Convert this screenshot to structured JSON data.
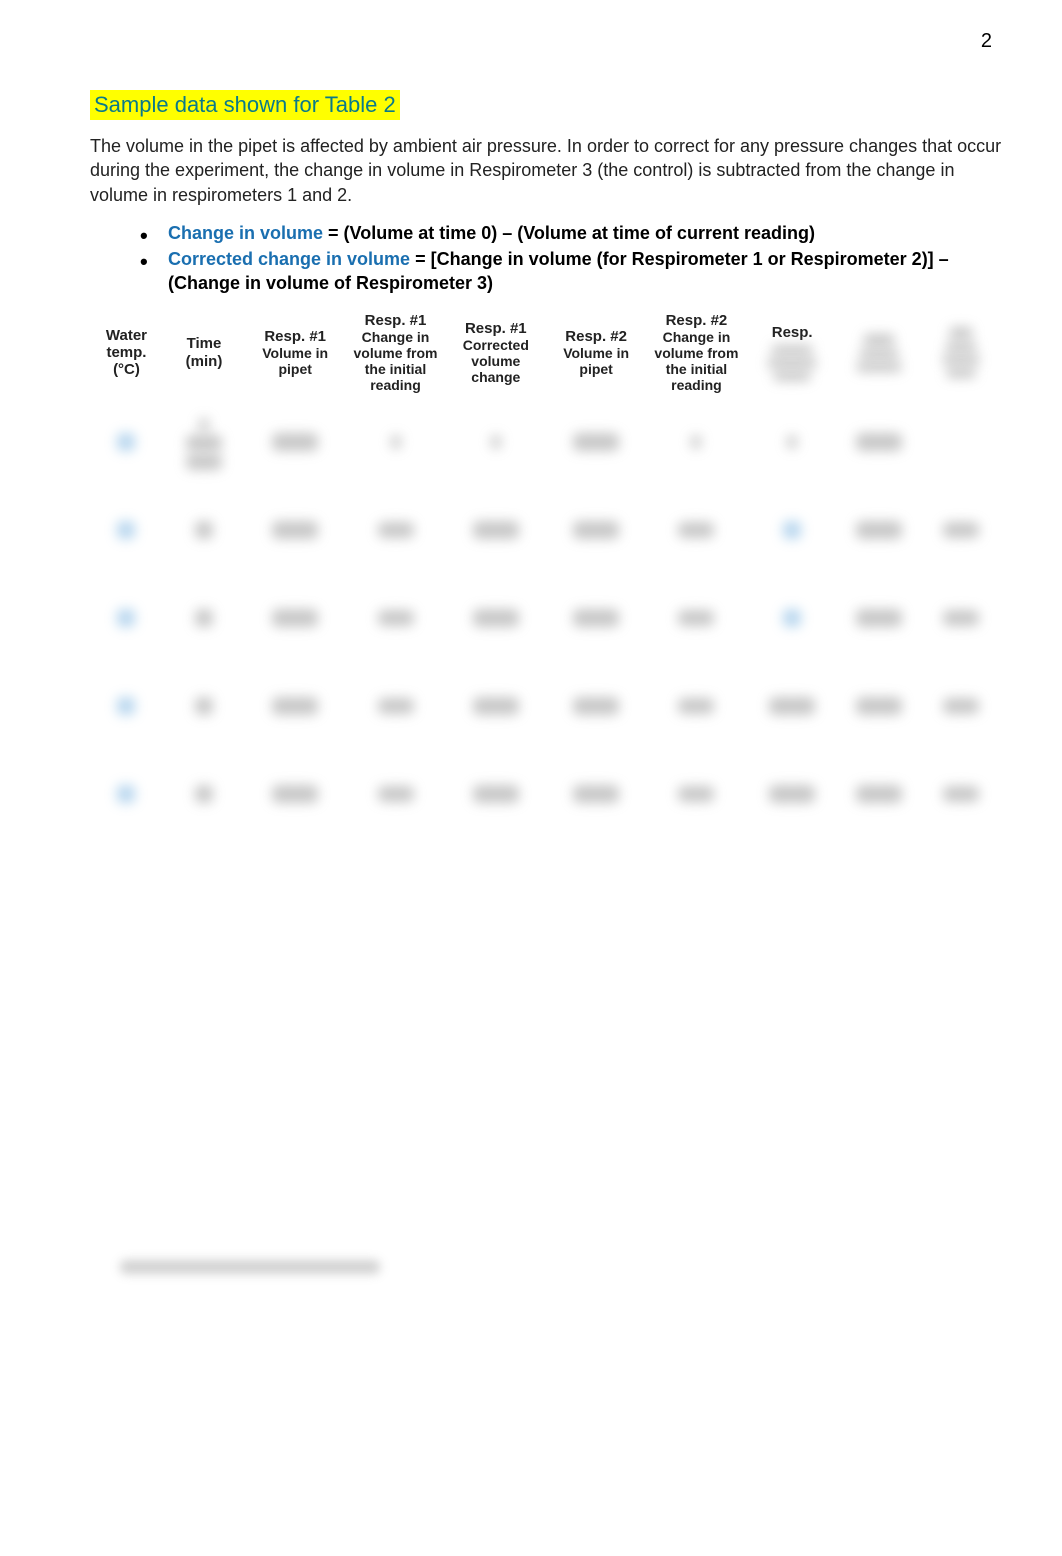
{
  "page_number": "2",
  "heading": "Sample data shown for Table 2",
  "intro_the": "The ",
  "intro_rest": "volume in the pipet is affected by ambient air pressure. In order to correct for any pressure changes that occur during the experiment, the change in volume in Respirometer 3 (the control) is subtracted from the change in volume in respirometers 1 and 2.",
  "bullets": [
    {
      "blue": "Change in volume",
      "rest": " = (Volume at time 0) – (Volume at time of current reading)"
    },
    {
      "blue": "Corrected change in volume",
      "rest": " = [Change in volume (for Respirometer 1 or Respirometer 2)] – (Change in volume of Respirometer 3)"
    }
  ],
  "table": {
    "headers": [
      {
        "main": "Water temp. (°C)"
      },
      {
        "main": "Time (min)"
      },
      {
        "main": "Resp. #1",
        "sub": "Volume in pipet"
      },
      {
        "main": "Resp. #1",
        "sub": "Change in volume from the initial reading"
      },
      {
        "main": "Resp. #1",
        "sub": "Corrected volume change"
      },
      {
        "main": "Resp. #2",
        "sub": "Volume in pipet"
      },
      {
        "main": "Resp. #2",
        "sub": "Change in volume from the initial reading"
      },
      {
        "main": "Resp."
      },
      {
        "main": ""
      },
      {
        "main": ""
      }
    ],
    "row_count": 5
  }
}
